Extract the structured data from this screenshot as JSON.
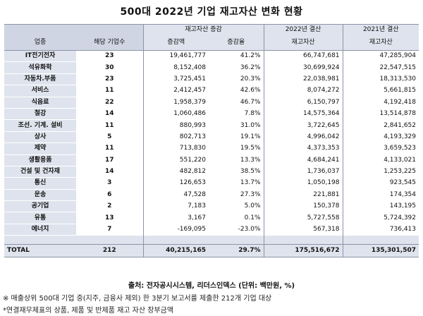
{
  "title": "500대 2022년 기업 재고자산 변화 현황",
  "headers": {
    "industry": "업종",
    "company_count": "해당 기업수",
    "change_group": "재고자산 증감",
    "change_amount": "증감액",
    "change_rate": "증감율",
    "y2022_group": "2022년 결산",
    "y2022_col": "재고자산",
    "y2021_group": "2021년 결산",
    "y2021_col": "재고자산"
  },
  "rows": [
    {
      "industry": "IT전기전자",
      "count": "23",
      "amount": "19,461,777",
      "rate": "41.2%",
      "y2022": "66,747,681",
      "y2021": "47,285,904"
    },
    {
      "industry": "석유화학",
      "count": "30",
      "amount": "8,152,408",
      "rate": "36.2%",
      "y2022": "30,699,924",
      "y2021": "22,547,515"
    },
    {
      "industry": "자동차.부품",
      "count": "23",
      "amount": "3,725,451",
      "rate": "20.3%",
      "y2022": "22,038,981",
      "y2021": "18,313,530"
    },
    {
      "industry": "서비스",
      "count": "11",
      "amount": "2,412,457",
      "rate": "42.6%",
      "y2022": "8,074,272",
      "y2021": "5,661,815"
    },
    {
      "industry": "식음료",
      "count": "22",
      "amount": "1,958,379",
      "rate": "46.7%",
      "y2022": "6,150,797",
      "y2021": "4,192,418"
    },
    {
      "industry": "철강",
      "count": "14",
      "amount": "1,060,486",
      "rate": "7.8%",
      "y2022": "14,575,364",
      "y2021": "13,514,878"
    },
    {
      "industry": "조선. 기계. 설비",
      "count": "11",
      "amount": "880,993",
      "rate": "31.0%",
      "y2022": "3,722,645",
      "y2021": "2,841,652"
    },
    {
      "industry": "상사",
      "count": "5",
      "amount": "802,713",
      "rate": "19.1%",
      "y2022": "4,996,042",
      "y2021": "4,193,329"
    },
    {
      "industry": "제약",
      "count": "11",
      "amount": "713,830",
      "rate": "19.5%",
      "y2022": "4,373,353",
      "y2021": "3,659,523"
    },
    {
      "industry": "생활용품",
      "count": "17",
      "amount": "551,220",
      "rate": "13.3%",
      "y2022": "4,684,241",
      "y2021": "4,133,021"
    },
    {
      "industry": "건설 및 건자재",
      "count": "14",
      "amount": "482,812",
      "rate": "38.5%",
      "y2022": "1,736,037",
      "y2021": "1,253,225"
    },
    {
      "industry": "통신",
      "count": "3",
      "amount": "126,653",
      "rate": "13.7%",
      "y2022": "1,050,198",
      "y2021": "923,545"
    },
    {
      "industry": "운송",
      "count": "6",
      "amount": "47,528",
      "rate": "27.3%",
      "y2022": "221,881",
      "y2021": "174,354"
    },
    {
      "industry": "공기업",
      "count": "2",
      "amount": "7,183",
      "rate": "5.0%",
      "y2022": "150,378",
      "y2021": "143,195"
    },
    {
      "industry": "유통",
      "count": "13",
      "amount": "3,167",
      "rate": "0.1%",
      "y2022": "5,727,558",
      "y2021": "5,724,392"
    },
    {
      "industry": "에너지",
      "count": "7",
      "amount": "-169,095",
      "rate": "-23.0%",
      "y2022": "567,318",
      "y2021": "736,413"
    }
  ],
  "total": {
    "label": "TOTAL",
    "count": "212",
    "amount": "40,215,165",
    "rate": "29.7%",
    "y2022": "175,516,672",
    "y2021": "135,301,507"
  },
  "source": "출처: 전자공시시스템, 리더스인덱스 (단위: 백만원, %)",
  "notes": [
    "※ 매출상위 500대 기업 중(지주, 금융사 제외) 한 3분기 보고서를 제출한 212개 기업 대상",
    "*연결재무제표의 상품, 제품 및 반제품 재고 자산 장부금액"
  ],
  "colors": {
    "header_band": "#cfd5e3",
    "row_band": "#dfe3ed",
    "rule": "#8c93a6"
  }
}
